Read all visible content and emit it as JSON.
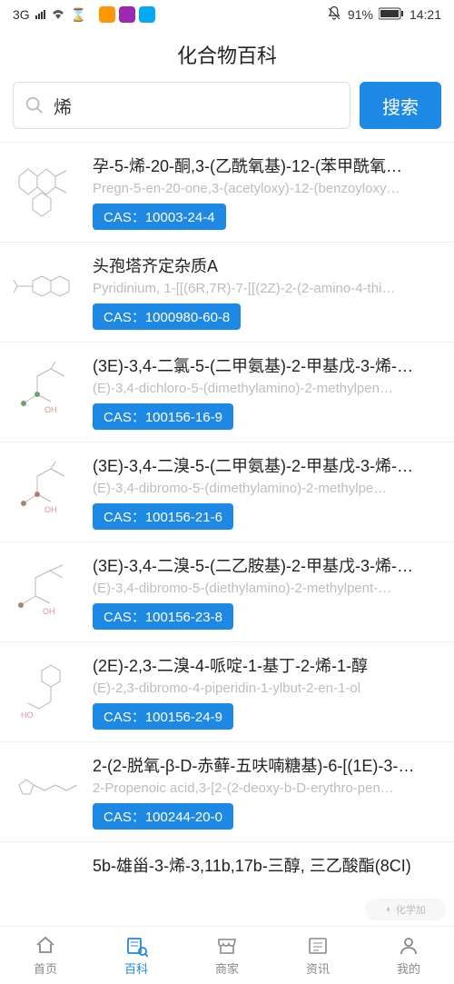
{
  "status": {
    "network_label": "3G",
    "apps_colors": [
      "#ff9800",
      "#9c27b0",
      "#03a9f4"
    ],
    "mute": true,
    "battery_pct": "91%",
    "time": "14:21"
  },
  "title": "化合物百科",
  "search": {
    "value": "烯",
    "placeholder": "",
    "button": "搜索"
  },
  "cas_prefix": "CAS：",
  "results": [
    {
      "cn": "孕-5-烯-20-酮,3-(乙酰氧基)-12-(苯甲酰氧…",
      "en": "Pregn-5-en-20-one,3-(acetyloxy)-12-(benzoyloxy…",
      "cas": "10003-24-4"
    },
    {
      "cn": "头孢塔齐定杂质A",
      "en": "Pyridinium, 1-[[(6R,7R)-7-[[(2Z)-2-(2-amino-4-thi…",
      "cas": "1000980-60-8"
    },
    {
      "cn": "(3E)-3,4-二氯-5-(二甲氨基)-2-甲基戊-3-烯-…",
      "en": "(E)-3,4-dichloro-5-(dimethylamino)-2-methylpen…",
      "cas": "100156-16-9"
    },
    {
      "cn": "(3E)-3,4-二溴-5-(二甲氨基)-2-甲基戊-3-烯-…",
      "en": "(E)-3,4-dibromo-5-(dimethylamino)-2-methylpe…",
      "cas": "100156-21-6"
    },
    {
      "cn": "(3E)-3,4-二溴-5-(二乙胺基)-2-甲基戊-3-烯-…",
      "en": "(E)-3,4-dibromo-5-(diethylamino)-2-methylpent-…",
      "cas": "100156-23-8"
    },
    {
      "cn": "(2E)-2,3-二溴-4-哌啶-1-基丁-2-烯-1-醇",
      "en": "(E)-2,3-dibromo-4-piperidin-1-ylbut-2-en-1-ol",
      "cas": "100156-24-9"
    },
    {
      "cn": "2-(2-脱氧-β-D-赤藓-五呋喃糖基)-6-[(1E)-3-…",
      "en": "2-Propenoic acid,3-[2-(2-deoxy-b-D-erythro-pen…",
      "cas": "100244-20-0"
    },
    {
      "cn": "5b-雄甾-3-烯-3,11b,17b-三醇, 三乙酸酯(8CI)",
      "en": "",
      "cas": ""
    }
  ],
  "tabs": [
    {
      "key": "home",
      "label": "首页",
      "active": false
    },
    {
      "key": "wiki",
      "label": "百科",
      "active": true
    },
    {
      "key": "store",
      "label": "商家",
      "active": false
    },
    {
      "key": "news",
      "label": "资讯",
      "active": false
    },
    {
      "key": "me",
      "label": "我的",
      "active": false
    }
  ],
  "colors": {
    "primary": "#1e88e5",
    "text": "#222222",
    "muted": "#bdbdbd",
    "border": "#eeeeee",
    "bg": "#f5f5f5"
  },
  "watermark": "化学加"
}
